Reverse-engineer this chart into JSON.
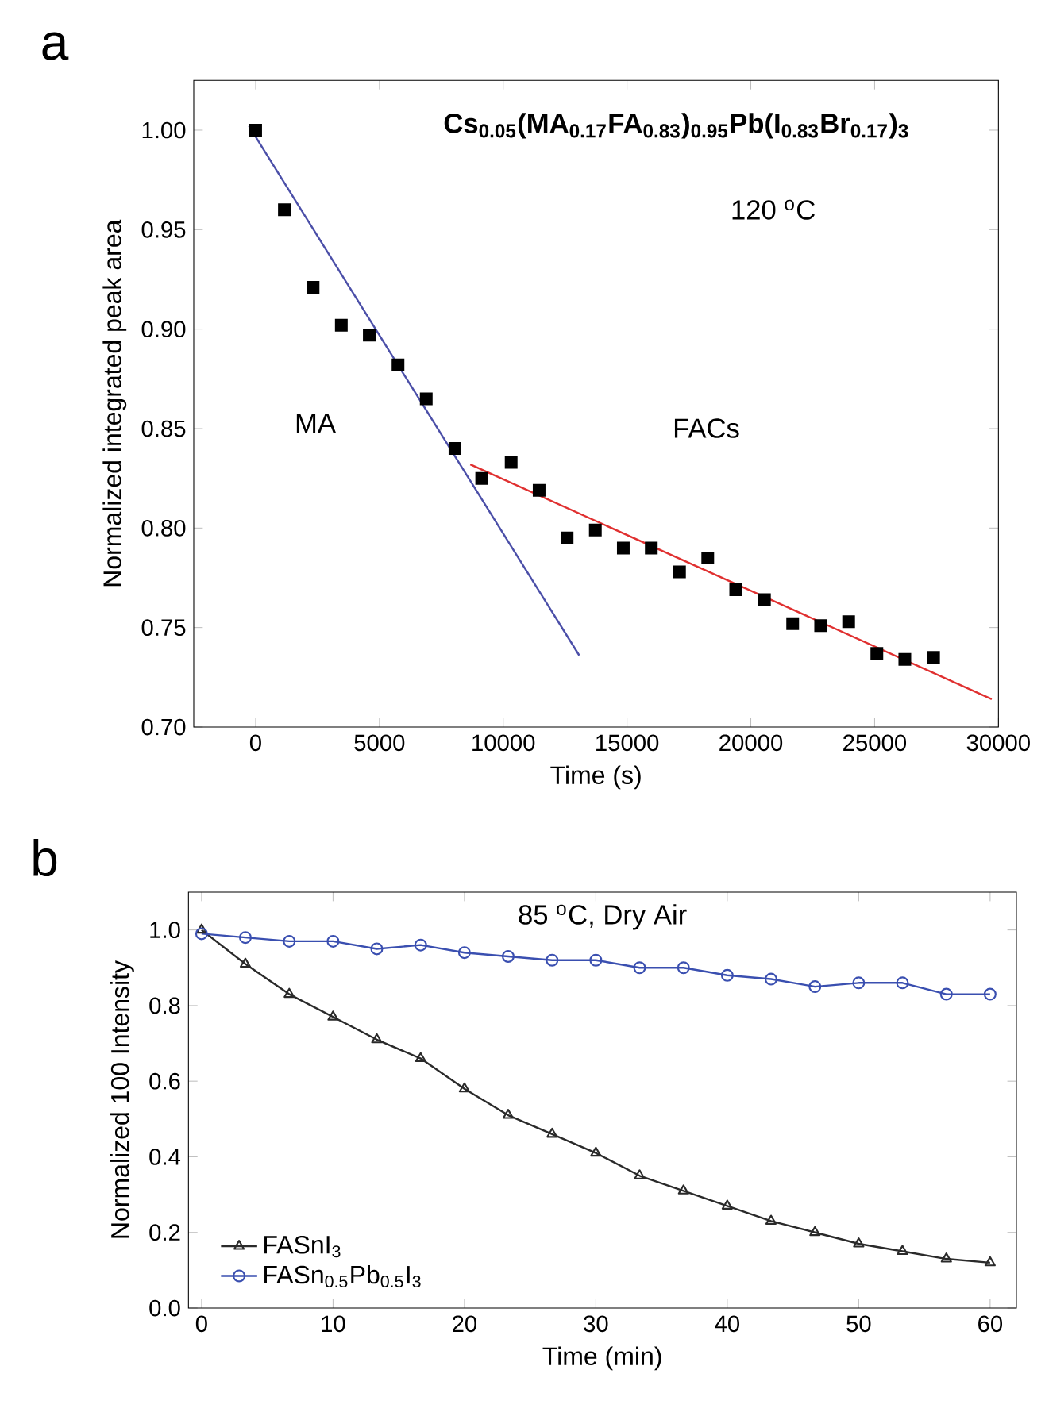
{
  "chart_data": [
    {
      "type": "scatter",
      "title": "a",
      "xlabel": "Time (s)",
      "ylabel": "Normalized integrated peak area",
      "xlim": [
        -2500,
        30000
      ],
      "ylim": [
        0.7,
        1.025
      ],
      "xticks": [
        0,
        5000,
        10000,
        15000,
        20000,
        25000,
        30000
      ],
      "yticks": [
        {
          "value": 0.7,
          "label": "0.70"
        },
        {
          "value": 0.75,
          "label": "0.75"
        },
        {
          "value": 0.8,
          "label": "0.80"
        },
        {
          "value": 0.85,
          "label": "0.85"
        },
        {
          "value": 0.9,
          "label": "0.90"
        },
        {
          "value": 0.95,
          "label": "0.95"
        },
        {
          "value": 1.0,
          "label": "1.00"
        }
      ],
      "annotations": [
        "**Cs$_{0.05}$(MA$_{0.17}$FA$_{0.83}$)$_{0.95}$Pb(I$_{0.83}$Br$_{0.17}$)$_{3}$**",
        "120 $^{o}$C",
        "MA",
        "FACs"
      ],
      "series": [
        {
          "type": "scatter",
          "marker": "square",
          "color": "#000000",
          "x": [
            0,
            1160,
            2320,
            3460,
            4590,
            5750,
            6890,
            8050,
            9130,
            10320,
            11450,
            12580,
            13720,
            14850,
            15980,
            17120,
            18260,
            19390,
            20550,
            21690,
            22820,
            23950,
            25090,
            26220,
            27380
          ],
          "values": [
            1.0,
            0.96,
            0.921,
            0.902,
            0.897,
            0.882,
            0.865,
            0.84,
            0.825,
            0.833,
            0.819,
            0.795,
            0.799,
            0.79,
            0.79,
            0.778,
            0.785,
            0.769,
            0.764,
            0.752,
            0.751,
            0.753,
            0.737,
            0.734,
            0.735
          ]
        },
        {
          "type": "line",
          "color": "#4b4fa8",
          "x": [
            -270,
            13070
          ],
          "values": [
            1.002,
            0.736
          ]
        },
        {
          "type": "line",
          "color": "#e03030",
          "x": [
            8670,
            29730
          ],
          "values": [
            0.832,
            0.714
          ]
        }
      ]
    },
    {
      "type": "line",
      "title": "b",
      "xlabel": "Time (min)",
      "ylabel": "Normalized 100 Intensity",
      "legend": "bottom left",
      "xlim": [
        -1,
        62
      ],
      "ylim": [
        0,
        1.1
      ],
      "xticks": [
        0,
        10,
        20,
        30,
        40,
        50,
        60
      ],
      "yticks": [
        {
          "value": 0,
          "label": "0.0"
        },
        {
          "value": 0.2,
          "label": "0.2"
        },
        {
          "value": 0.4,
          "label": "0.4"
        },
        {
          "value": 0.6,
          "label": "0.6"
        },
        {
          "value": 0.8,
          "label": "0.8"
        },
        {
          "value": 1.0,
          "label": "1.0"
        }
      ],
      "annotations": [
        "85 $^{o}$C, Dry Air"
      ],
      "x": [
        0,
        3.33,
        6.67,
        10,
        13.33,
        16.67,
        20,
        23.33,
        26.67,
        30,
        33.33,
        36.67,
        40,
        43.33,
        46.67,
        50,
        53.33,
        56.67,
        60
      ],
      "series": [
        {
          "name": "FASnI$_{3}$",
          "marker": "triangle",
          "color": "#2a2a2a",
          "values": [
            1.0,
            0.91,
            0.83,
            0.77,
            0.71,
            0.66,
            0.58,
            0.51,
            0.46,
            0.41,
            0.35,
            0.31,
            0.27,
            0.23,
            0.2,
            0.17,
            0.15,
            0.13,
            0.12
          ]
        },
        {
          "name": "FASn$_{0.5}$Pb$_{0.5}$I$_{3}$",
          "marker": "circle",
          "color": "#3a4fb0",
          "values": [
            0.99,
            0.98,
            0.97,
            0.97,
            0.95,
            0.96,
            0.94,
            0.93,
            0.92,
            0.92,
            0.9,
            0.9,
            0.88,
            0.87,
            0.85,
            0.86,
            0.86,
            0.83,
            0.83
          ]
        }
      ]
    }
  ]
}
